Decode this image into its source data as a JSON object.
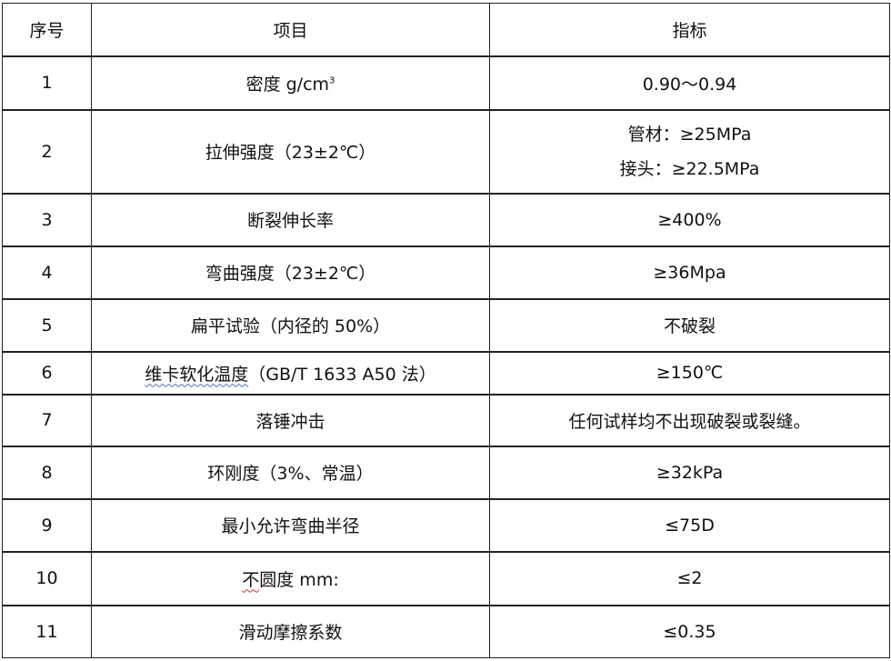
{
  "headers": {
    "no": "序号",
    "item": "项目",
    "spec": "指标"
  },
  "rows": [
    {
      "no": "1",
      "item": "密度 g/cm",
      "item_sup": "3",
      "spec": "0.90～0.94"
    },
    {
      "no": "2",
      "item": "拉伸强度（23±2℃）",
      "spec_lines": [
        "管材：≥25MPa",
        "接头：≥22.5MPa"
      ]
    },
    {
      "no": "3",
      "item": "断裂伸长率",
      "spec": "≥400%"
    },
    {
      "no": "4",
      "item": "弯曲强度（23±2℃）",
      "spec": "≥36Mpa"
    },
    {
      "no": "5",
      "item": "扁平试验（内径的 50%）",
      "spec": "不破裂"
    },
    {
      "no": "6",
      "item_marked": "维卡软化温度",
      "item_rest": "（GB/T 1633 A50 法）",
      "spec": "≥150℃"
    },
    {
      "no": "7",
      "item": "落锤冲击",
      "spec": "任何试样均不出现破裂或裂缝。"
    },
    {
      "no": "8",
      "item": "环刚度（3%、常温）",
      "spec": "≥32kPa"
    },
    {
      "no": "9",
      "item": "最小允许弯曲半径",
      "spec": "≤75D"
    },
    {
      "no": "10",
      "item_marked": "不",
      "item_rest": "圆度 mm:",
      "spec": "≤2"
    },
    {
      "no": "11",
      "item": "滑动摩擦系数",
      "spec": "≤0.35"
    }
  ]
}
